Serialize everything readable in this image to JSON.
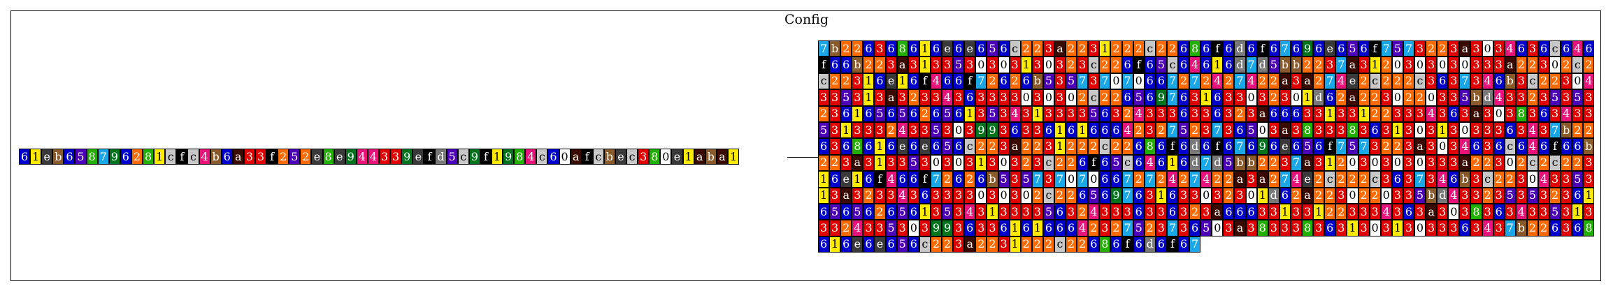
{
  "title": "Config",
  "colors": {
    "0": "#ffffff",
    "1": "#ffeb00",
    "2": "#ff6a00",
    "3": "#e00000",
    "4": "#e8127b",
    "5": "#4b00b8",
    "6": "#0000cc",
    "7": "#1aa7e8",
    "8": "#21b000",
    "9": "#00731c",
    "a": "#3a0a00",
    "b": "#8a5a2a",
    "c": "#c8c8c8",
    "d": "#787878",
    "e": "#3a3a3a",
    "f": "#000000"
  },
  "light_symbols": [
    "0",
    "1",
    "c"
  ],
  "strip": "61eb65879628 1cfc4b6a33f25 2e8e94433 9efd5c9f1984c60afcbec380e1aba1",
  "grid_rows": [
    "7b226368616e6e656c223a2231222c22686f6d6f67696e656f7573223a3034636c646f66b223a313",
    "3530303130323c226f65c64616d7d5bb2237a3120303030333a22302c2c22316e1",
    "6f466f72626b535737070667272427422a3a274e2c222c3637346b3c2230433531",
    "3a32334363333030302c2265697631633032301d62a2230220335bd43323535323",
    "6165656265613534313333563243336336323a666331331223334363a303836343",
    "353133324335303993633616166642327523736503a38333836313031303336343"
  ]
}
